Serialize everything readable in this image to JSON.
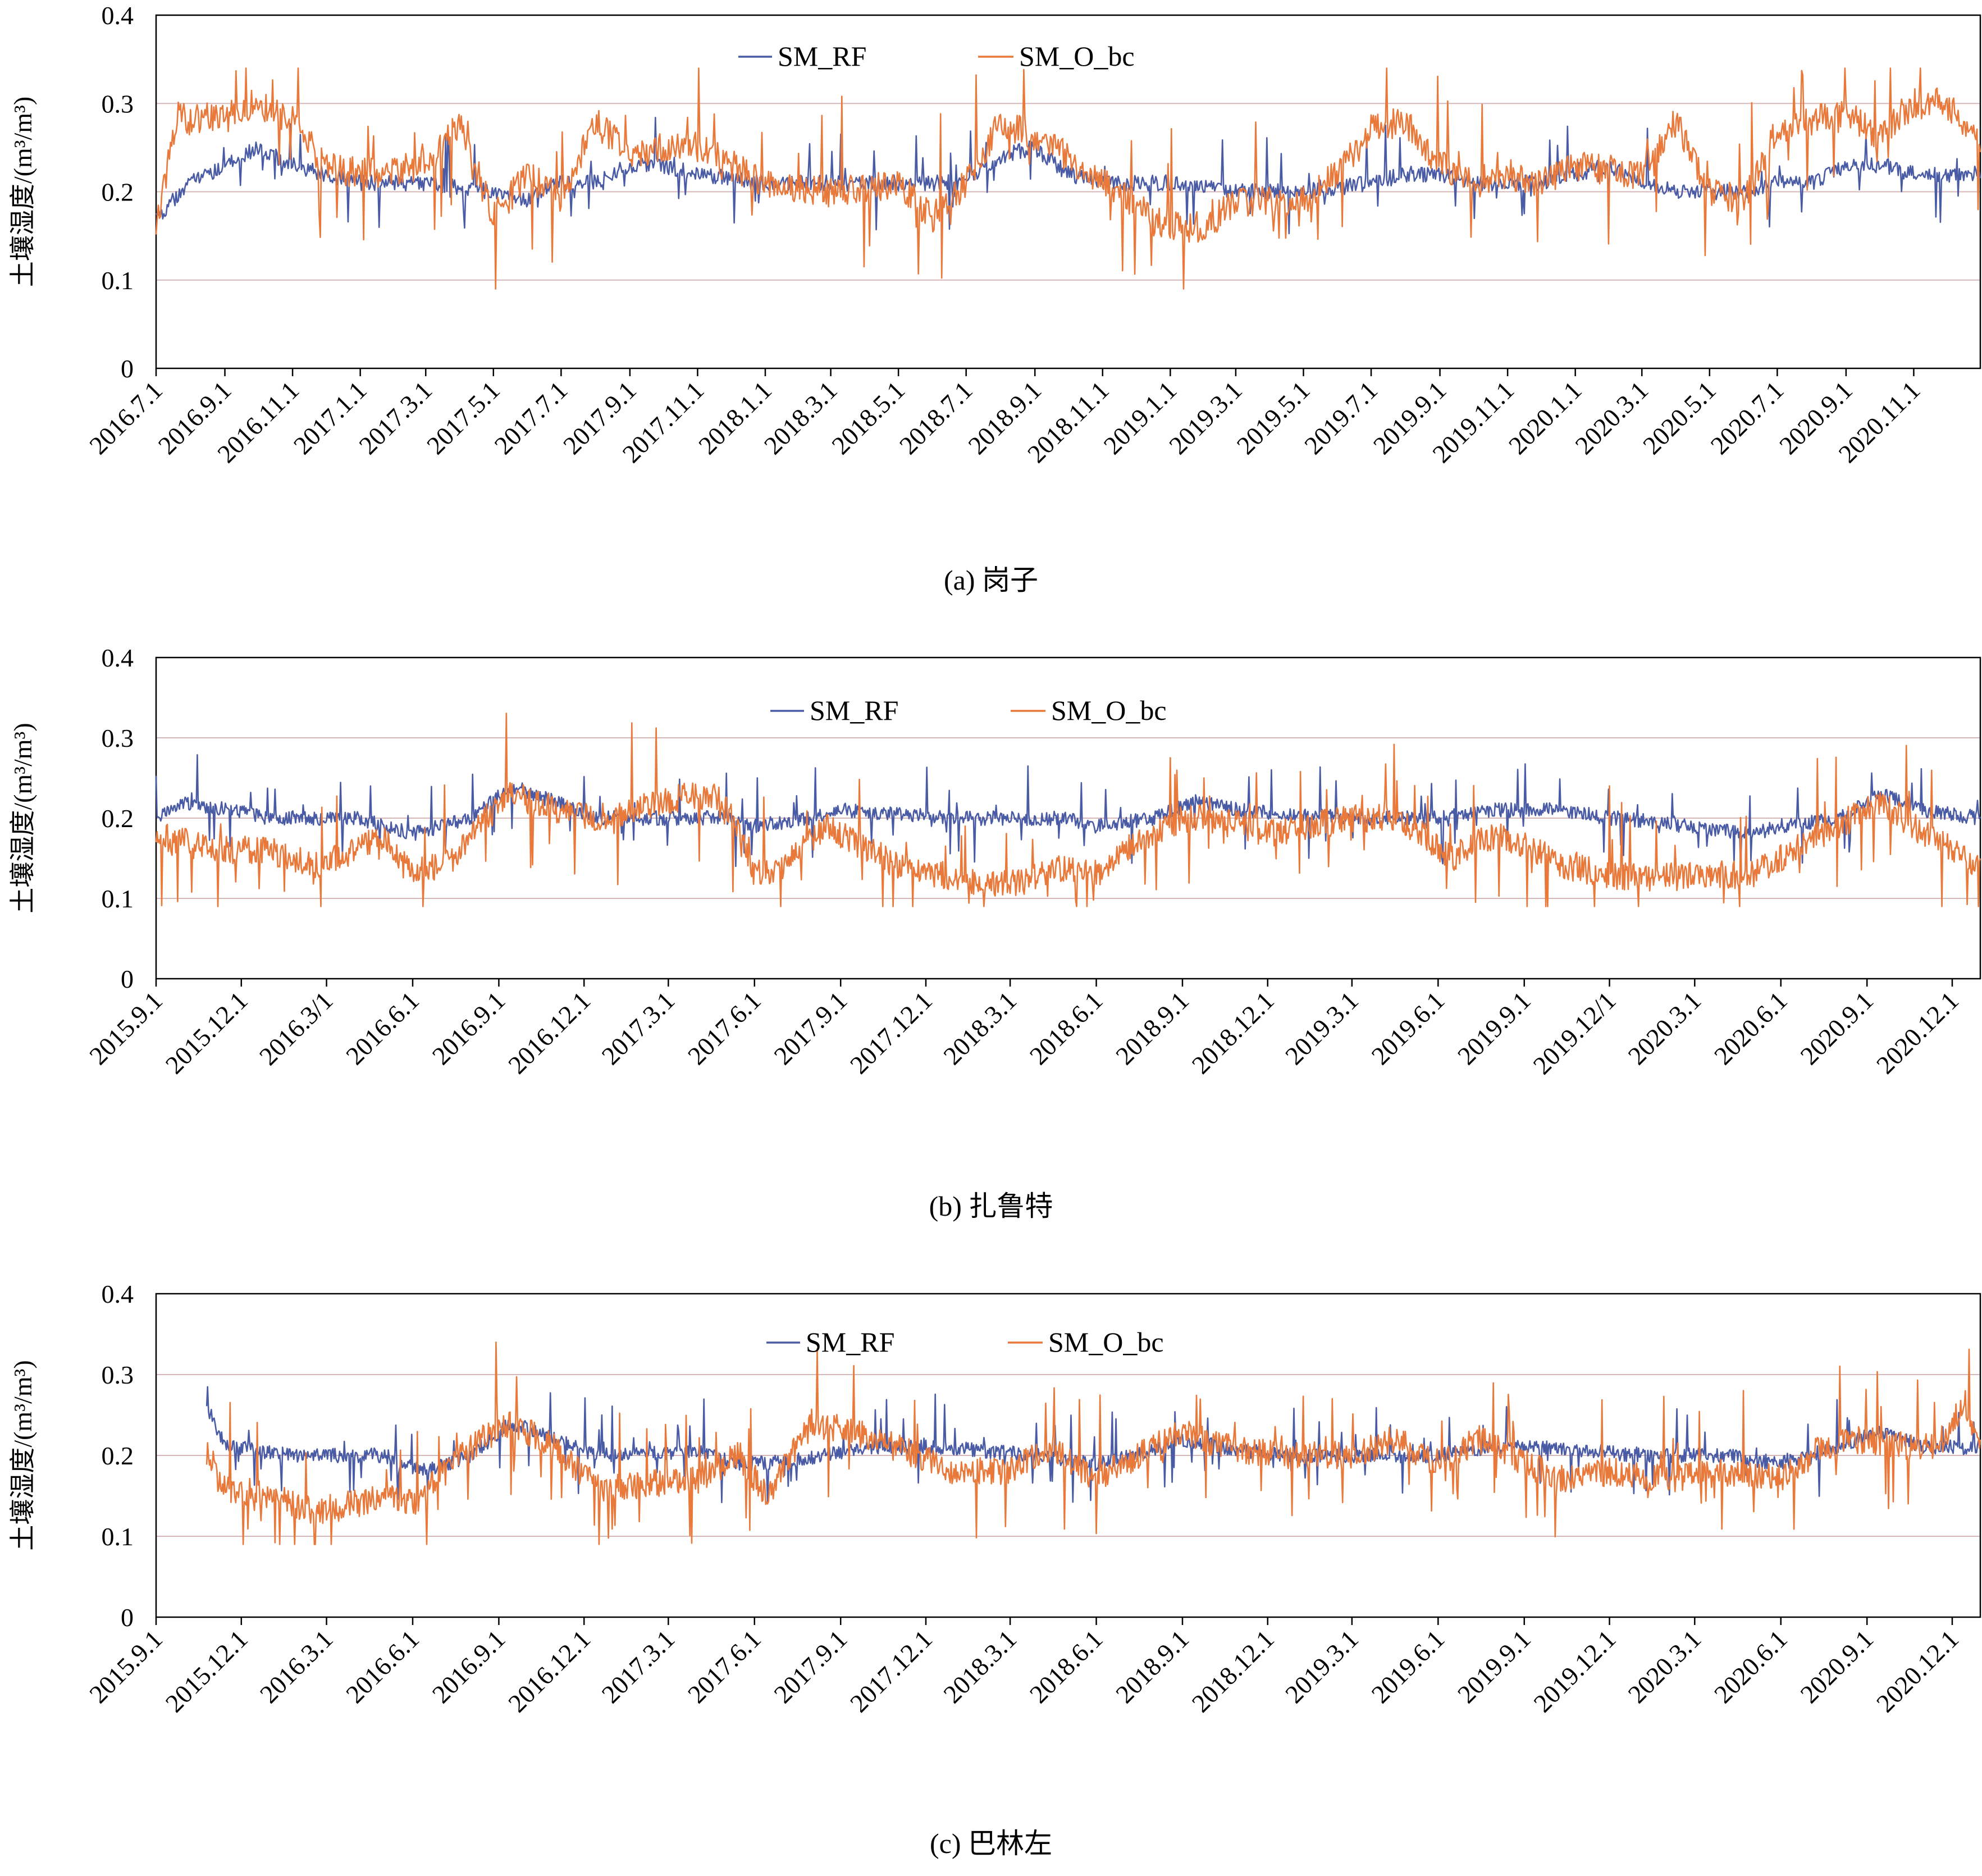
{
  "panel_captions": [
    "(a) 岗子",
    "(b) 扎鲁特",
    "(c) 巴林左"
  ],
  "series_colors": {
    "SM_RF": "#4a5ba6",
    "SM_O_bc": "#e8793a"
  },
  "chart_data": [
    {
      "type": "line",
      "title": "(a) 岗子",
      "ylabel": "土壤湿度/(m³/m³)",
      "ylim": [
        0,
        0.4
      ],
      "yticks": [
        "0",
        "0.1",
        "0.2",
        "0.3",
        "0.4"
      ],
      "grid": "horizontal",
      "legend": "top-center",
      "x_range": [
        "2016-07-01",
        "2020-12-31"
      ],
      "x_tick_labels": [
        "2016.7.1",
        "2016.9.1",
        "2016.11.1",
        "2017.1.1",
        "2017.3.1",
        "2017.5.1",
        "2017.7.1",
        "2017.9.1",
        "2017.11.1",
        "2018.1.1",
        "2018.3.1",
        "2018.5.1",
        "2018.7.1",
        "2018.9.1",
        "2018.11.1",
        "2019.1.1",
        "2019.3.1",
        "2019.5.1",
        "2019.7.1",
        "2019.9.1",
        "2019.11.1",
        "2020.1.1",
        "2020.3.1",
        "2020.5.1",
        "2020.7.1",
        "2020.9.1",
        "2020.11.1"
      ],
      "x_tick_dates": [
        "2016-07-01",
        "2016-09-01",
        "2016-11-01",
        "2017-01-01",
        "2017-03-01",
        "2017-05-01",
        "2017-07-01",
        "2017-09-01",
        "2017-11-01",
        "2018-01-01",
        "2018-03-01",
        "2018-05-01",
        "2018-07-01",
        "2018-09-01",
        "2018-11-01",
        "2019-01-01",
        "2019-03-01",
        "2019-05-01",
        "2019-07-01",
        "2019-09-01",
        "2019-11-01",
        "2020-01-01",
        "2020-03-01",
        "2020-05-01",
        "2020-07-01",
        "2020-09-01",
        "2020-11-01"
      ],
      "series": [
        {
          "name": "SM_RF",
          "x": [
            "2016-07-01",
            "2016-08-01",
            "2016-09-01",
            "2016-10-01",
            "2016-11-01",
            "2016-12-01",
            "2017-01-01",
            "2017-03-01",
            "2017-05-01",
            "2017-06-01",
            "2017-07-01",
            "2017-08-01",
            "2017-09-01",
            "2017-10-01",
            "2017-11-01",
            "2018-01-01",
            "2018-03-01",
            "2018-05-01",
            "2018-06-01",
            "2018-07-01",
            "2018-08-01",
            "2018-09-01",
            "2018-10-01",
            "2018-11-01",
            "2019-01-01",
            "2019-03-01",
            "2019-05-01",
            "2019-07-01",
            "2019-08-01",
            "2019-09-01",
            "2019-10-01",
            "2019-11-01",
            "2019-12-01",
            "2020-01-01",
            "2020-02-01",
            "2020-03-01",
            "2020-04-01",
            "2020-05-01",
            "2020-06-01",
            "2020-07-01",
            "2020-08-01",
            "2020-09-01",
            "2020-10-01",
            "2020-11-01",
            "2020-12-01",
            "2020-12-31"
          ],
          "y": [
            0.17,
            0.21,
            0.23,
            0.25,
            0.23,
            0.22,
            0.21,
            0.21,
            0.2,
            0.19,
            0.21,
            0.21,
            0.23,
            0.23,
            0.22,
            0.21,
            0.21,
            0.21,
            0.21,
            0.21,
            0.24,
            0.25,
            0.22,
            0.21,
            0.21,
            0.2,
            0.2,
            0.21,
            0.22,
            0.22,
            0.21,
            0.21,
            0.21,
            0.22,
            0.23,
            0.21,
            0.2,
            0.2,
            0.2,
            0.21,
            0.21,
            0.23,
            0.23,
            0.22,
            0.22,
            0.22
          ]
        },
        {
          "name": "SM_O_bc",
          "x": [
            "2016-07-01",
            "2016-07-20",
            "2016-08-01",
            "2016-09-01",
            "2016-10-01",
            "2016-11-01",
            "2016-12-01",
            "2017-01-01",
            "2017-03-01",
            "2017-04-01",
            "2017-05-01",
            "2017-06-01",
            "2017-07-01",
            "2017-08-01",
            "2017-09-01",
            "2017-10-01",
            "2017-11-01",
            "2018-01-01",
            "2018-03-01",
            "2018-05-01",
            "2018-06-01",
            "2018-07-01",
            "2018-08-01",
            "2018-09-01",
            "2018-10-01",
            "2018-11-01",
            "2019-01-01",
            "2019-02-01",
            "2019-03-01",
            "2019-05-01",
            "2019-06-01",
            "2019-07-01",
            "2019-08-01",
            "2019-09-01",
            "2019-10-01",
            "2019-11-01",
            "2019-12-01",
            "2020-01-01",
            "2020-03-01",
            "2020-04-01",
            "2020-05-01",
            "2020-06-01",
            "2020-07-01",
            "2020-08-01",
            "2020-09-01",
            "2020-10-01",
            "2020-11-01",
            "2020-12-01",
            "2020-12-31"
          ],
          "y": [
            0.16,
            0.29,
            0.28,
            0.29,
            0.3,
            0.28,
            0.23,
            0.22,
            0.23,
            0.28,
            0.17,
            0.22,
            0.19,
            0.28,
            0.24,
            0.25,
            0.25,
            0.21,
            0.2,
            0.21,
            0.17,
            0.21,
            0.28,
            0.26,
            0.24,
            0.21,
            0.16,
            0.16,
            0.19,
            0.19,
            0.22,
            0.27,
            0.28,
            0.23,
            0.21,
            0.22,
            0.21,
            0.23,
            0.22,
            0.28,
            0.2,
            0.19,
            0.27,
            0.28,
            0.29,
            0.26,
            0.3,
            0.3,
            0.25
          ]
        }
      ]
    },
    {
      "type": "line",
      "title": "(b) 扎鲁特",
      "ylabel": "土壤湿度/(m³/m³)",
      "ylim": [
        0,
        0.4
      ],
      "yticks": [
        "0",
        "0.1",
        "0.2",
        "0.3",
        "0.4"
      ],
      "grid": "horizontal",
      "legend": "top-center",
      "x_range": [
        "2015-09-01",
        "2020-12-31"
      ],
      "x_tick_labels": [
        "2015.9.1",
        "2015.12.1",
        "2016.3/1",
        "2016.6.1",
        "2016.9.1",
        "2016.12.1",
        "2017.3.1",
        "2017.6.1",
        "2017.9.1",
        "2017.12.1",
        "2018.3.1",
        "2018.6.1",
        "2018.9.1",
        "2018.12.1",
        "2019.3.1",
        "2019.6.1",
        "2019.9.1",
        "2019.12/1",
        "2020.3.1",
        "2020.6.1",
        "2020.9.1",
        "2020.12.1"
      ],
      "x_tick_dates": [
        "2015-09-01",
        "2015-12-01",
        "2016-03-01",
        "2016-06-01",
        "2016-09-01",
        "2016-12-01",
        "2017-03-01",
        "2017-06-01",
        "2017-09-01",
        "2017-12-01",
        "2018-03-01",
        "2018-06-01",
        "2018-09-01",
        "2018-12-01",
        "2019-03-01",
        "2019-06-01",
        "2019-09-01",
        "2019-12-01",
        "2020-03-01",
        "2020-06-01",
        "2020-09-01",
        "2020-12-01"
      ],
      "series": [
        {
          "name": "SM_RF",
          "x": [
            "2015-09-01",
            "2015-10-01",
            "2016-01-01",
            "2016-04-01",
            "2016-06-01",
            "2016-08-01",
            "2016-09-15",
            "2016-11-01",
            "2016-12-15",
            "2017-05-01",
            "2017-06-01",
            "2017-08-01",
            "2017-09-01",
            "2018-01-01",
            "2018-05-01",
            "2018-06-01",
            "2018-08-01",
            "2018-09-15",
            "2018-11-01",
            "2019-03-01",
            "2019-06-01",
            "2019-08-01",
            "2019-10-01",
            "2019-12-01",
            "2019-12-15",
            "2020-05-01",
            "2020-06-01",
            "2020-08-01",
            "2020-09-15",
            "2020-11-01",
            "2020-12-31"
          ],
          "y": [
            0.2,
            0.22,
            0.2,
            0.2,
            0.18,
            0.2,
            0.24,
            0.22,
            0.2,
            0.2,
            0.19,
            0.2,
            0.21,
            0.2,
            0.2,
            0.19,
            0.2,
            0.22,
            0.21,
            0.2,
            0.2,
            0.21,
            0.21,
            0.2,
            0.2,
            0.18,
            0.19,
            0.2,
            0.23,
            0.21,
            0.2
          ]
        },
        {
          "name": "SM_O_bc",
          "x": [
            "2015-09-01",
            "2015-11-01",
            "2016-01-01",
            "2016-02-15",
            "2016-04-01",
            "2016-05-01",
            "2016-06-01",
            "2016-07-15",
            "2016-08-15",
            "2016-09-15",
            "2016-11-01",
            "2016-12-15",
            "2017-04-01",
            "2017-05-01",
            "2017-06-01",
            "2017-07-01",
            "2017-08-15",
            "2017-10-01",
            "2017-11-01",
            "2018-02-01",
            "2018-03-15",
            "2018-05-01",
            "2018-06-01",
            "2018-07-15",
            "2018-09-01",
            "2018-10-15",
            "2018-12-01",
            "2019-03-01",
            "2019-04-15",
            "2019-05-15",
            "2019-06-15",
            "2019-08-01",
            "2019-09-15",
            "2019-10-15",
            "2019-12-01",
            "2020-01-01",
            "2020-05-01",
            "2020-06-15",
            "2020-08-01",
            "2020-09-15",
            "2020-11-01",
            "2020-12-31"
          ],
          "y": [
            0.18,
            0.16,
            0.16,
            0.14,
            0.16,
            0.18,
            0.13,
            0.15,
            0.2,
            0.23,
            0.21,
            0.2,
            0.23,
            0.22,
            0.13,
            0.14,
            0.19,
            0.16,
            0.14,
            0.12,
            0.12,
            0.14,
            0.13,
            0.17,
            0.2,
            0.2,
            0.18,
            0.2,
            0.2,
            0.18,
            0.15,
            0.18,
            0.16,
            0.14,
            0.13,
            0.125,
            0.13,
            0.16,
            0.19,
            0.22,
            0.18,
            0.14
          ]
        }
      ]
    },
    {
      "type": "line",
      "title": "(c) 巴林左",
      "ylabel": "土壤湿度/(m³/m³)",
      "ylim": [
        0,
        0.4
      ],
      "yticks": [
        "0",
        "0.1",
        "0.2",
        "0.3",
        "0.4"
      ],
      "grid": "horizontal",
      "legend": "top-center",
      "x_range": [
        "2015-09-01",
        "2020-12-31"
      ],
      "x_tick_labels": [
        "2015.9.1",
        "2015.12.1",
        "2016.3.1",
        "2016.6.1",
        "2016.9.1",
        "2016.12.1",
        "2017.3.1",
        "2017.6.1",
        "2017.9.1",
        "2017.12.1",
        "2018.3.1",
        "2018.6.1",
        "2018.9.1",
        "2018.12.1",
        "2019.3.1",
        "2019.6.1",
        "2019.9.1",
        "2019.12.1",
        "2020.3.1",
        "2020.6.1",
        "2020.9.1",
        "2020.12.1"
      ],
      "x_tick_dates": [
        "2015-09-01",
        "2015-12-01",
        "2016-03-01",
        "2016-06-01",
        "2016-09-01",
        "2016-12-01",
        "2017-03-01",
        "2017-06-01",
        "2017-09-01",
        "2017-12-01",
        "2018-03-01",
        "2018-06-01",
        "2018-09-01",
        "2018-12-01",
        "2019-03-01",
        "2019-06-01",
        "2019-09-01",
        "2019-12-01",
        "2020-03-01",
        "2020-06-01",
        "2020-09-01",
        "2020-12-01"
      ],
      "series": [
        {
          "name": "SM_RF",
          "x": [
            "2015-10-25",
            "2015-11-15",
            "2016-02-01",
            "2016-05-01",
            "2016-06-15",
            "2016-08-01",
            "2016-09-15",
            "2016-11-01",
            "2016-12-15",
            "2017-04-01",
            "2017-05-15",
            "2017-06-15",
            "2017-08-15",
            "2017-10-01",
            "2017-12-15",
            "2018-04-01",
            "2018-06-01",
            "2018-07-15",
            "2018-09-01",
            "2018-10-15",
            "2018-12-15",
            "2019-04-01",
            "2019-06-01",
            "2019-08-01",
            "2019-10-01",
            "2020-01-01",
            "2020-04-01",
            "2020-06-01",
            "2020-08-01",
            "2020-09-15",
            "2020-11-01",
            "2020-12-31"
          ],
          "y": [
            0.26,
            0.21,
            0.2,
            0.2,
            0.18,
            0.2,
            0.24,
            0.22,
            0.2,
            0.205,
            0.19,
            0.19,
            0.2,
            0.21,
            0.21,
            0.2,
            0.19,
            0.2,
            0.22,
            0.21,
            0.2,
            0.2,
            0.2,
            0.21,
            0.21,
            0.2,
            0.2,
            0.19,
            0.21,
            0.23,
            0.21,
            0.21
          ]
        },
        {
          "name": "SM_O_bc",
          "x": [
            "2015-10-25",
            "2015-11-10",
            "2016-01-01",
            "2016-02-15",
            "2016-04-01",
            "2016-05-01",
            "2016-06-01",
            "2016-07-15",
            "2016-08-15",
            "2016-09-15",
            "2016-11-01",
            "2016-12-15",
            "2017-04-01",
            "2017-05-15",
            "2017-06-15",
            "2017-08-01",
            "2017-09-15",
            "2017-11-01",
            "2018-01-01",
            "2018-03-01",
            "2018-04-15",
            "2018-06-01",
            "2018-07-15",
            "2018-09-01",
            "2018-10-15",
            "2018-12-15",
            "2019-03-01",
            "2019-04-15",
            "2019-06-01",
            "2019-07-15",
            "2019-09-01",
            "2019-10-15",
            "2019-12-01",
            "2020-02-01",
            "2020-04-01",
            "2020-06-01",
            "2020-07-15",
            "2020-09-01",
            "2020-10-15",
            "2020-11-15",
            "2020-12-15",
            "2020-12-31"
          ],
          "y": [
            0.21,
            0.16,
            0.15,
            0.13,
            0.14,
            0.15,
            0.14,
            0.19,
            0.22,
            0.24,
            0.21,
            0.16,
            0.17,
            0.2,
            0.15,
            0.24,
            0.23,
            0.21,
            0.18,
            0.18,
            0.21,
            0.17,
            0.2,
            0.23,
            0.21,
            0.2,
            0.2,
            0.22,
            0.19,
            0.22,
            0.19,
            0.17,
            0.18,
            0.17,
            0.18,
            0.17,
            0.21,
            0.22,
            0.21,
            0.21,
            0.265,
            0.21
          ]
        }
      ]
    }
  ]
}
